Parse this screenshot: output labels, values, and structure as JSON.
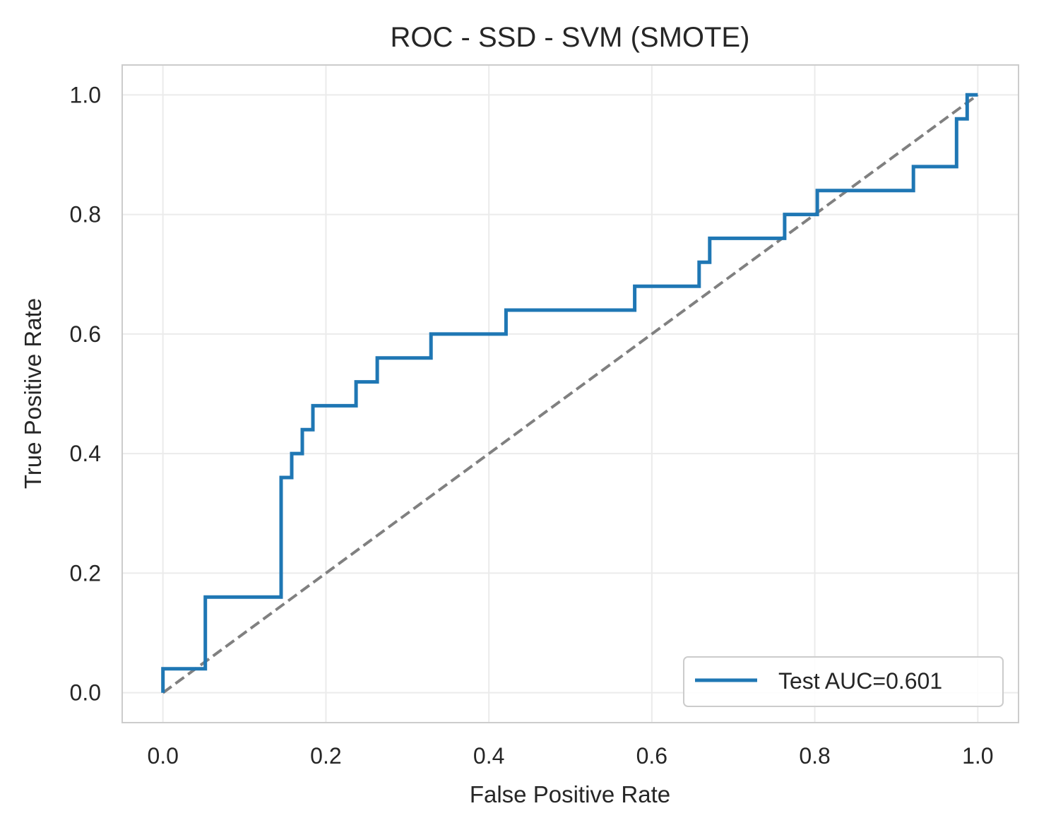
{
  "chart_data": {
    "type": "line",
    "title": "ROC - SSD - SVM (SMOTE)",
    "xlabel": "False Positive Rate",
    "ylabel": "True Positive Rate",
    "xlim": [
      -0.05,
      1.05
    ],
    "ylim": [
      -0.05,
      1.05
    ],
    "xticks": [
      0.0,
      0.2,
      0.4,
      0.6,
      0.8,
      1.0
    ],
    "yticks": [
      0.0,
      0.2,
      0.4,
      0.6,
      0.8,
      1.0
    ],
    "xtick_labels": [
      "0.0",
      "0.2",
      "0.4",
      "0.6",
      "0.8",
      "1.0"
    ],
    "ytick_labels": [
      "0.0",
      "0.2",
      "0.4",
      "0.6",
      "0.8",
      "1.0"
    ],
    "grid": true,
    "legend": {
      "position": "lower-right",
      "entries": [
        "Test AUC=0.601"
      ]
    },
    "series": [
      {
        "name": "Test AUC=0.601",
        "color": "#1f77b4",
        "style": "solid",
        "x": [
          0.0,
          0.0,
          0.052,
          0.052,
          0.145,
          0.145,
          0.158,
          0.158,
          0.171,
          0.171,
          0.184,
          0.184,
          0.237,
          0.237,
          0.263,
          0.263,
          0.329,
          0.329,
          0.421,
          0.421,
          0.579,
          0.579,
          0.658,
          0.658,
          0.671,
          0.671,
          0.763,
          0.763,
          0.803,
          0.803,
          0.921,
          0.921,
          0.974,
          0.974,
          0.987,
          0.987,
          1.0
        ],
        "y": [
          0.0,
          0.04,
          0.04,
          0.16,
          0.16,
          0.36,
          0.36,
          0.4,
          0.4,
          0.44,
          0.44,
          0.48,
          0.48,
          0.52,
          0.52,
          0.56,
          0.56,
          0.6,
          0.6,
          0.64,
          0.64,
          0.68,
          0.68,
          0.72,
          0.72,
          0.76,
          0.76,
          0.8,
          0.8,
          0.84,
          0.84,
          0.88,
          0.88,
          0.96,
          0.96,
          1.0,
          1.0
        ]
      },
      {
        "color": "#808080",
        "style": "dashed",
        "x": [
          0.0,
          1.0
        ],
        "y": [
          0.0,
          1.0
        ]
      }
    ]
  }
}
